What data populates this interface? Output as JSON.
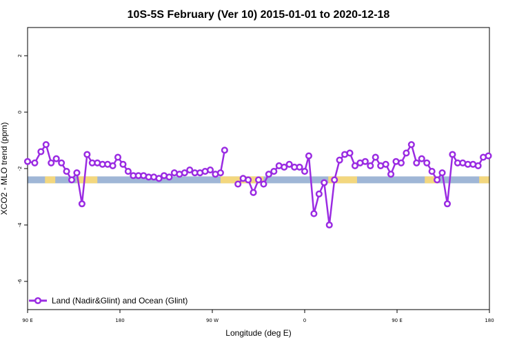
{
  "chart_data": {
    "type": "line",
    "title": "10S-5S February (Ver 10)   2015-01-01 to 2020-12-18",
    "xlabel": "Longitude (deg E)",
    "ylabel": "XCO2 - MLO trend (ppm)",
    "x_tick_labels": [
      "90 E",
      "180",
      "90 W",
      "0",
      "90 E",
      "180"
    ],
    "x_tick_values": [
      90,
      180,
      270,
      360,
      450,
      540
    ],
    "y_tick_values": [
      -6,
      -4,
      -2,
      0,
      2
    ],
    "xlim": [
      90,
      540
    ],
    "ylim": [
      -7,
      3
    ],
    "grid": false,
    "legend_position": "bottom-left",
    "colors": {
      "series": "#9a2be2",
      "ocean": "#9fb6d6",
      "land": "#f3d77e"
    },
    "map_strip": {
      "y": -2.4,
      "land_segments": [
        [
          107,
          117
        ],
        [
          138,
          158
        ],
        [
          278,
          320
        ],
        [
          383,
          411
        ],
        [
          477,
          491
        ],
        [
          530,
          540
        ]
      ]
    },
    "series": [
      {
        "name": "Land (Nadir&Glint) and Ocean (Glint)",
        "points": [
          [
            90,
            -1.75
          ],
          [
            97,
            -1.8
          ],
          [
            103,
            -1.4
          ],
          [
            108,
            -1.15
          ],
          [
            113,
            -1.8
          ],
          [
            118,
            -1.65
          ],
          [
            123,
            -1.8
          ],
          [
            128,
            -2.1
          ],
          [
            133,
            -2.4
          ],
          [
            138,
            -2.15
          ],
          [
            143,
            -3.25
          ],
          [
            148,
            -1.5
          ],
          [
            153,
            -1.8
          ],
          [
            158,
            -1.8
          ],
          [
            163,
            -1.85
          ],
          [
            168,
            -1.85
          ],
          [
            173,
            -1.9
          ],
          [
            178,
            -1.6
          ],
          [
            183,
            -1.85
          ],
          [
            188,
            -2.1
          ],
          [
            193,
            -2.25
          ],
          [
            198,
            -2.25
          ],
          [
            203,
            -2.25
          ],
          [
            208,
            -2.3
          ],
          [
            213,
            -2.3
          ],
          [
            218,
            -2.35
          ],
          [
            223,
            -2.25
          ],
          [
            228,
            -2.3
          ],
          [
            233,
            -2.15
          ],
          [
            238,
            -2.2
          ],
          [
            243,
            -2.15
          ],
          [
            248,
            -2.05
          ],
          [
            253,
            -2.15
          ],
          [
            258,
            -2.15
          ],
          [
            263,
            -2.1
          ],
          [
            268,
            -2.05
          ],
          [
            273,
            -2.2
          ],
          [
            278,
            -2.15
          ],
          [
            282,
            -1.35
          ],
          null,
          [
            295,
            -2.55
          ],
          [
            300,
            -2.35
          ],
          [
            305,
            -2.4
          ],
          [
            310,
            -2.85
          ],
          [
            315,
            -2.4
          ],
          [
            320,
            -2.55
          ],
          [
            325,
            -2.2
          ],
          [
            330,
            -2.1
          ],
          [
            335,
            -1.9
          ],
          [
            340,
            -1.95
          ],
          [
            345,
            -1.85
          ],
          [
            350,
            -1.95
          ],
          [
            355,
            -1.95
          ],
          [
            360,
            -2.1
          ],
          [
            364,
            -1.55
          ],
          [
            369,
            -3.6
          ],
          [
            374,
            -2.9
          ],
          [
            379,
            -2.5
          ],
          [
            384,
            -4.0
          ],
          [
            389,
            -2.4
          ],
          [
            394,
            -1.7
          ],
          [
            399,
            -1.5
          ],
          [
            404,
            -1.45
          ],
          [
            409,
            -1.9
          ],
          [
            414,
            -1.8
          ],
          [
            419,
            -1.75
          ],
          [
            424,
            -1.9
          ],
          [
            429,
            -1.6
          ],
          [
            434,
            -1.9
          ],
          [
            439,
            -1.85
          ],
          [
            444,
            -2.2
          ],
          [
            449,
            -1.75
          ],
          [
            454,
            -1.8
          ],
          [
            459,
            -1.45
          ],
          [
            464,
            -1.15
          ],
          [
            469,
            -1.8
          ],
          [
            474,
            -1.65
          ],
          [
            479,
            -1.8
          ],
          [
            484,
            -2.1
          ],
          [
            489,
            -2.4
          ],
          [
            494,
            -2.15
          ],
          [
            499,
            -3.25
          ],
          [
            504,
            -1.5
          ],
          [
            509,
            -1.8
          ],
          [
            514,
            -1.8
          ],
          [
            519,
            -1.85
          ],
          [
            524,
            -1.85
          ],
          [
            529,
            -1.9
          ],
          [
            534,
            -1.6
          ],
          [
            539,
            -1.55
          ]
        ]
      }
    ]
  }
}
